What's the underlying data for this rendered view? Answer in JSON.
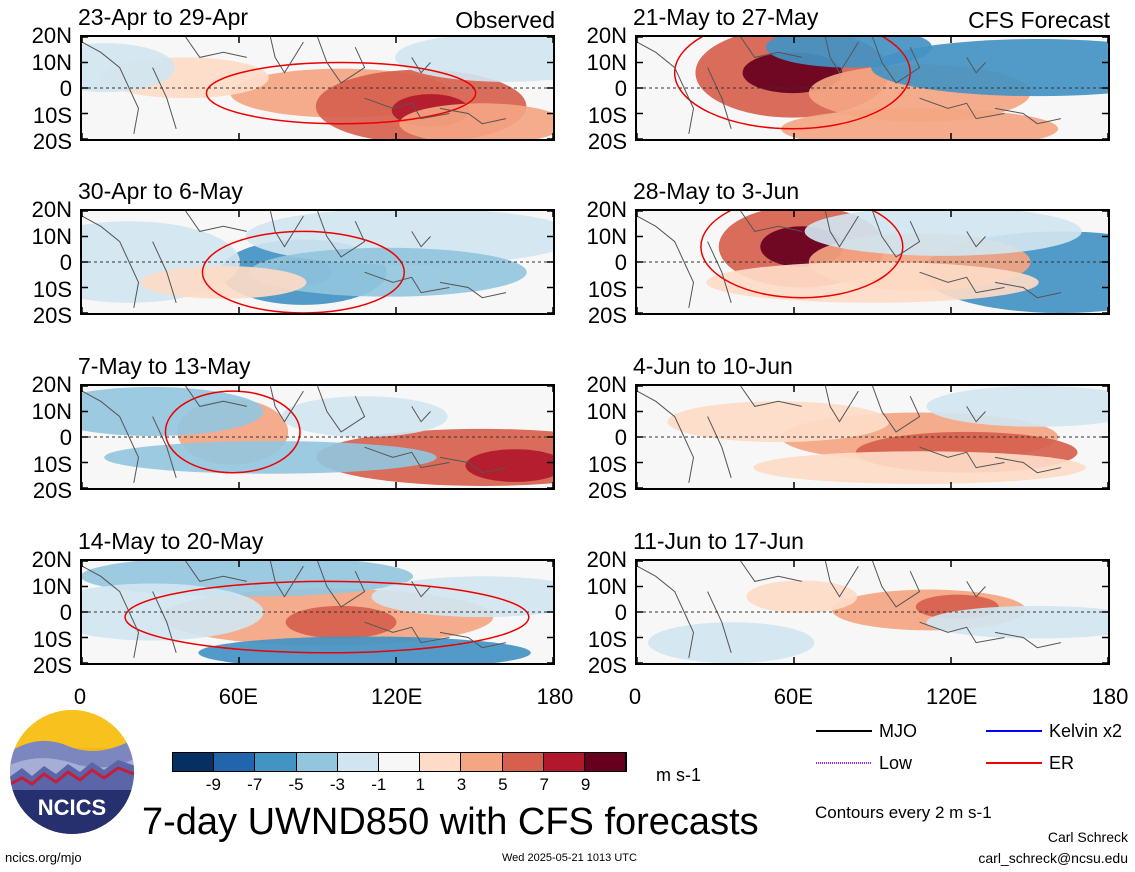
{
  "chart_data": {
    "type": "heatmap",
    "title": "7-day UWND850 with CFS forecasts",
    "units": "m s-1",
    "x_ticks": [
      "0",
      "60E",
      "120E",
      "180"
    ],
    "y_ticks": [
      "20N",
      "10N",
      "0",
      "10S",
      "20S"
    ],
    "xlim": [
      0,
      180
    ],
    "ylim": [
      -20,
      20
    ],
    "panels": [
      {
        "title": "23-Apr to 29-Apr",
        "tag": "Observed",
        "column": "observed"
      },
      {
        "title": "30-Apr to 6-May",
        "tag": "",
        "column": "observed"
      },
      {
        "title": "7-May to 13-May",
        "tag": "",
        "column": "observed"
      },
      {
        "title": "14-May to 20-May",
        "tag": "",
        "column": "observed"
      },
      {
        "title": "21-May to 27-May",
        "tag": "CFS Forecast",
        "column": "forecast"
      },
      {
        "title": "28-May to 3-Jun",
        "tag": "",
        "column": "forecast"
      },
      {
        "title": "4-Jun to 10-Jun",
        "tag": "",
        "column": "forecast"
      },
      {
        "title": "11-Jun to 17-Jun",
        "tag": "",
        "column": "forecast"
      }
    ],
    "colorbar": {
      "labels": [
        "-9",
        "-7",
        "-5",
        "-3",
        "-1",
        "1",
        "3",
        "5",
        "7",
        "9"
      ],
      "colors": [
        "#053061",
        "#2166ac",
        "#4393c3",
        "#92c5de",
        "#d1e5f0",
        "#f7f7f7",
        "#fddbc7",
        "#f4a582",
        "#d6604d",
        "#b2182b",
        "#67001f"
      ]
    },
    "legend": [
      {
        "label": "MJO",
        "color": "#000000"
      },
      {
        "label": "Kelvin x2",
        "color": "#0000ff"
      },
      {
        "label": "Low",
        "color": "#a020f0"
      },
      {
        "label": "ER",
        "color": "#ee0000"
      }
    ],
    "contour_note": "Contours every 2 m s-1"
  },
  "footer": {
    "logo_text": "NCICS",
    "url": "ncics.org/mjo",
    "timestamp": "Wed 2025-05-21 1013 UTC",
    "author": "Carl Schreck",
    "email": "carl_schreck@ncsu.edu"
  }
}
